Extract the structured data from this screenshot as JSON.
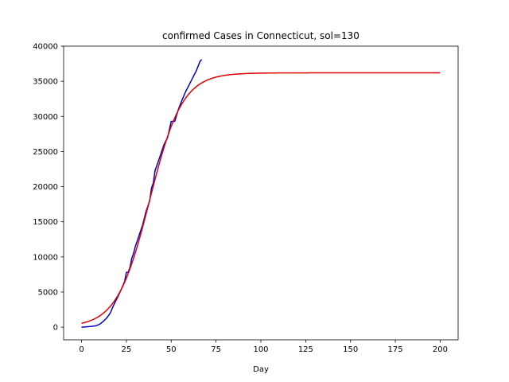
{
  "chart_data": {
    "type": "line",
    "title": "confirmed Cases in Connecticut, sol=130",
    "xlabel": "Day",
    "ylabel": "",
    "xlim": [
      -10,
      210
    ],
    "ylim": [
      -1800,
      40000
    ],
    "xticks": [
      0,
      25,
      50,
      75,
      100,
      125,
      150,
      175,
      200
    ],
    "yticks": [
      0,
      5000,
      10000,
      15000,
      20000,
      25000,
      30000,
      35000,
      40000
    ],
    "grid": false,
    "legend": "none",
    "series": [
      {
        "color": "#0000cc",
        "x": [
          0,
          5,
          8,
          10,
          12,
          14,
          16,
          18,
          20,
          22,
          24,
          25,
          26,
          27,
          28,
          29,
          30,
          32,
          34,
          36,
          38,
          39,
          40,
          41,
          42,
          44,
          46,
          48,
          50,
          52,
          54,
          56,
          58,
          60,
          62,
          64,
          66,
          67
        ],
        "y": [
          0,
          100,
          200,
          400,
          800,
          1300,
          2000,
          3200,
          4200,
          5300,
          6500,
          7800,
          7800,
          8500,
          9800,
          10500,
          11500,
          13000,
          14500,
          16500,
          18000,
          19800,
          20500,
          22300,
          23000,
          24500,
          26000,
          27000,
          29300,
          29300,
          31000,
          32300,
          33500,
          34500,
          35500,
          36500,
          37800,
          38100
        ]
      },
      {
        "color": "#dd0000",
        "model": "logistic",
        "K": 36200,
        "r": 0.11,
        "t0": 38,
        "x_range": [
          0,
          200
        ]
      }
    ]
  }
}
